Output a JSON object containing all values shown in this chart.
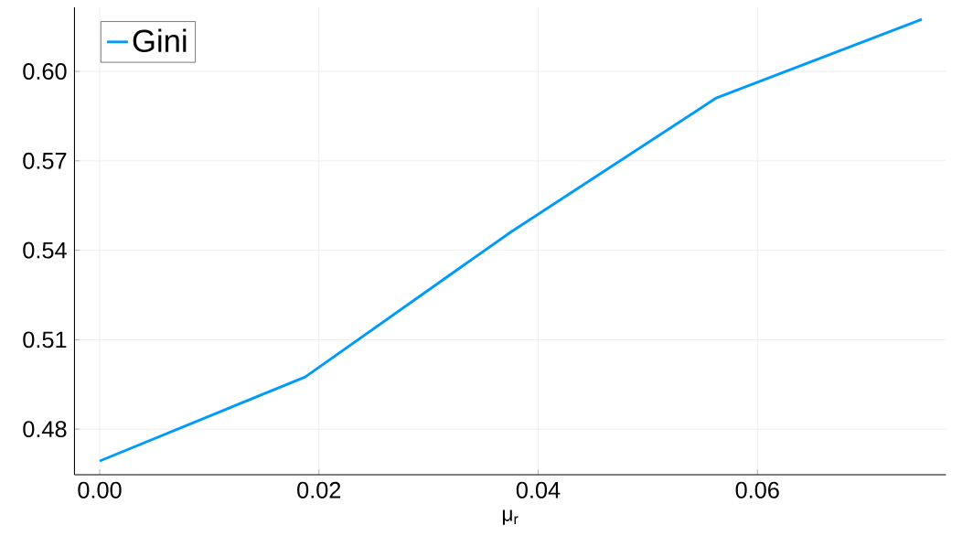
{
  "chart_data": {
    "type": "line",
    "xlabel": "μ$_{r}$",
    "x": [
      0.0,
      0.01875,
      0.0375,
      0.05625,
      0.075
    ],
    "series": [
      {
        "name": "Gini",
        "color": "#009afa",
        "values": [
          0.4693,
          0.4975,
          0.5461,
          0.5911,
          0.6175
        ]
      }
    ],
    "xlim": [
      -0.0023,
      0.0772
    ],
    "ylim": [
      0.4647,
      0.6215
    ],
    "xticks": [
      {
        "value": 0.0,
        "label": "0.00"
      },
      {
        "value": 0.02,
        "label": "0.02"
      },
      {
        "value": 0.04,
        "label": "0.04"
      },
      {
        "value": 0.06,
        "label": "0.06"
      }
    ],
    "yticks": [
      {
        "value": 0.48,
        "label": "0.48"
      },
      {
        "value": 0.51,
        "label": "0.51"
      },
      {
        "value": 0.54,
        "label": "0.54"
      },
      {
        "value": 0.57,
        "label": "0.57"
      },
      {
        "value": 0.6,
        "label": "0.60"
      }
    ],
    "grid": true,
    "legend": "top left",
    "marker": "none",
    "line_style": "solid"
  }
}
